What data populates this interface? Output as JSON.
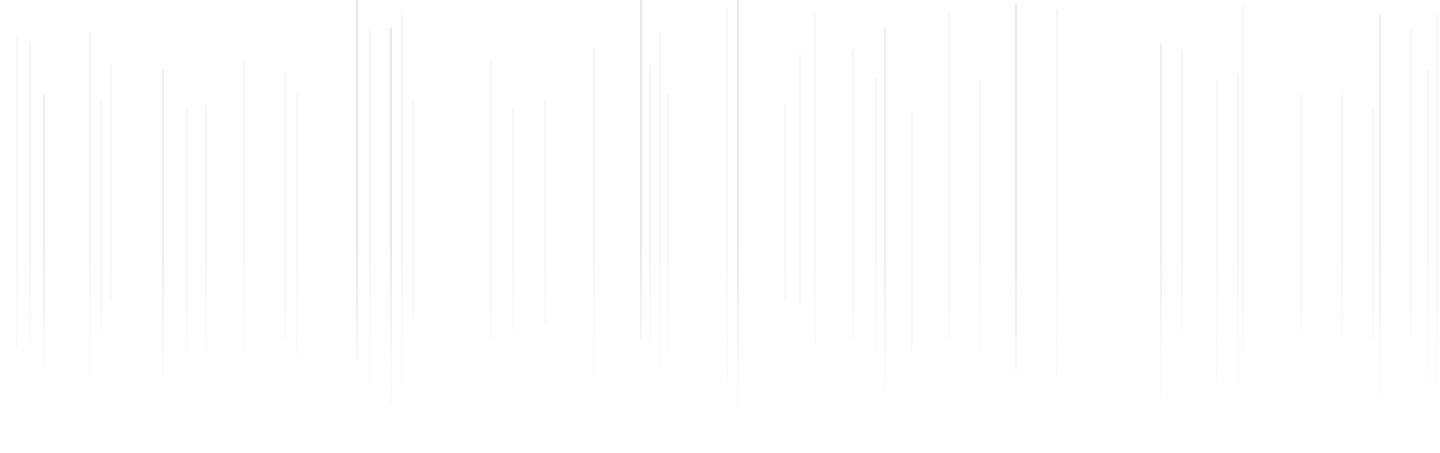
{
  "theme": {
    "background": "#ffffff",
    "line_color": "#ececec",
    "line_color_strong": "#e2e2e2"
  }
}
